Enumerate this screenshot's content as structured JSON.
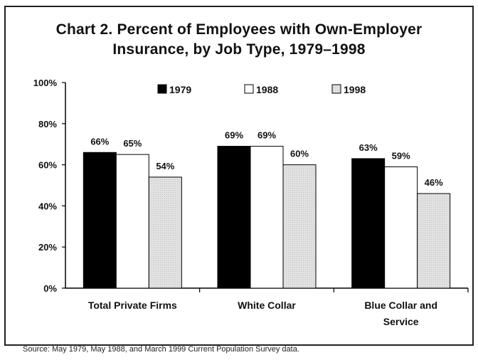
{
  "title_line1": "Chart 2. Percent of Employees with Own-Employer",
  "title_line2": "Insurance, by Job Type, 1979–1998",
  "source": "Source: May 1979, May 1988, and March 1999 Current Population Survey data.",
  "chart_data": {
    "type": "bar",
    "title": "Chart 2. Percent of Employees with Own-Employer Insurance, by Job Type, 1979–1998",
    "categories": [
      "Total Private Firms",
      "White Collar",
      "Blue Collar and Service"
    ],
    "category_lines": [
      [
        "Total Private Firms"
      ],
      [
        "White Collar"
      ],
      [
        "Blue Collar and",
        "Service"
      ]
    ],
    "series": [
      {
        "name": "1979",
        "values": [
          66,
          69,
          63
        ],
        "color": "#000000"
      },
      {
        "name": "1988",
        "values": [
          65,
          69,
          59
        ],
        "color": "#ffffff"
      },
      {
        "name": "1998",
        "values": [
          54,
          60,
          46
        ],
        "color": "#d9d9d9"
      }
    ],
    "value_labels": [
      [
        "66%",
        "69%",
        "63%"
      ],
      [
        "65%",
        "69%",
        "59%"
      ],
      [
        "54%",
        "60%",
        "46%"
      ]
    ],
    "yticks": [
      "0%",
      "20%",
      "40%",
      "60%",
      "80%",
      "100%"
    ],
    "ylim": [
      0,
      100
    ],
    "xlabel": "",
    "ylabel": "",
    "grid": false,
    "legend_position": "top"
  }
}
